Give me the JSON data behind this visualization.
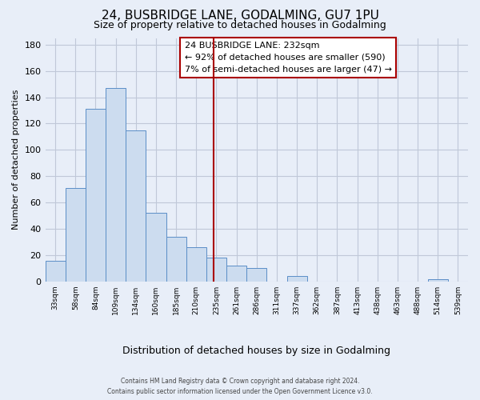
{
  "title": "24, BUSBRIDGE LANE, GODALMING, GU7 1PU",
  "subtitle": "Size of property relative to detached houses in Godalming",
  "xlabel": "Distribution of detached houses by size in Godalming",
  "ylabel": "Number of detached properties",
  "bar_labels": [
    "33sqm",
    "58sqm",
    "84sqm",
    "109sqm",
    "134sqm",
    "160sqm",
    "185sqm",
    "210sqm",
    "235sqm",
    "261sqm",
    "286sqm",
    "311sqm",
    "337sqm",
    "362sqm",
    "387sqm",
    "413sqm",
    "438sqm",
    "463sqm",
    "488sqm",
    "514sqm",
    "539sqm"
  ],
  "bar_values": [
    16,
    71,
    131,
    147,
    115,
    52,
    34,
    26,
    18,
    12,
    10,
    0,
    4,
    0,
    0,
    0,
    0,
    0,
    0,
    2,
    0
  ],
  "bar_color": "#ccdcef",
  "bar_edge_color": "#5b8ec7",
  "property_label": "24 BUSBRIDGE LANE: 232sqm",
  "annotation_line1": "← 92% of detached houses are smaller (590)",
  "annotation_line2": "7% of semi-detached houses are larger (47) →",
  "vline_pos": 7.88,
  "vline_color": "#aa0000",
  "ylim_max": 185,
  "yticks": [
    0,
    20,
    40,
    60,
    80,
    100,
    120,
    140,
    160,
    180
  ],
  "footer_line1": "Contains HM Land Registry data © Crown copyright and database right 2024.",
  "footer_line2": "Contains public sector information licensed under the Open Government Licence v3.0.",
  "bg_color": "#e8eef8",
  "plot_bg_color": "#e8eef8",
  "grid_color": "#c0c8d8"
}
